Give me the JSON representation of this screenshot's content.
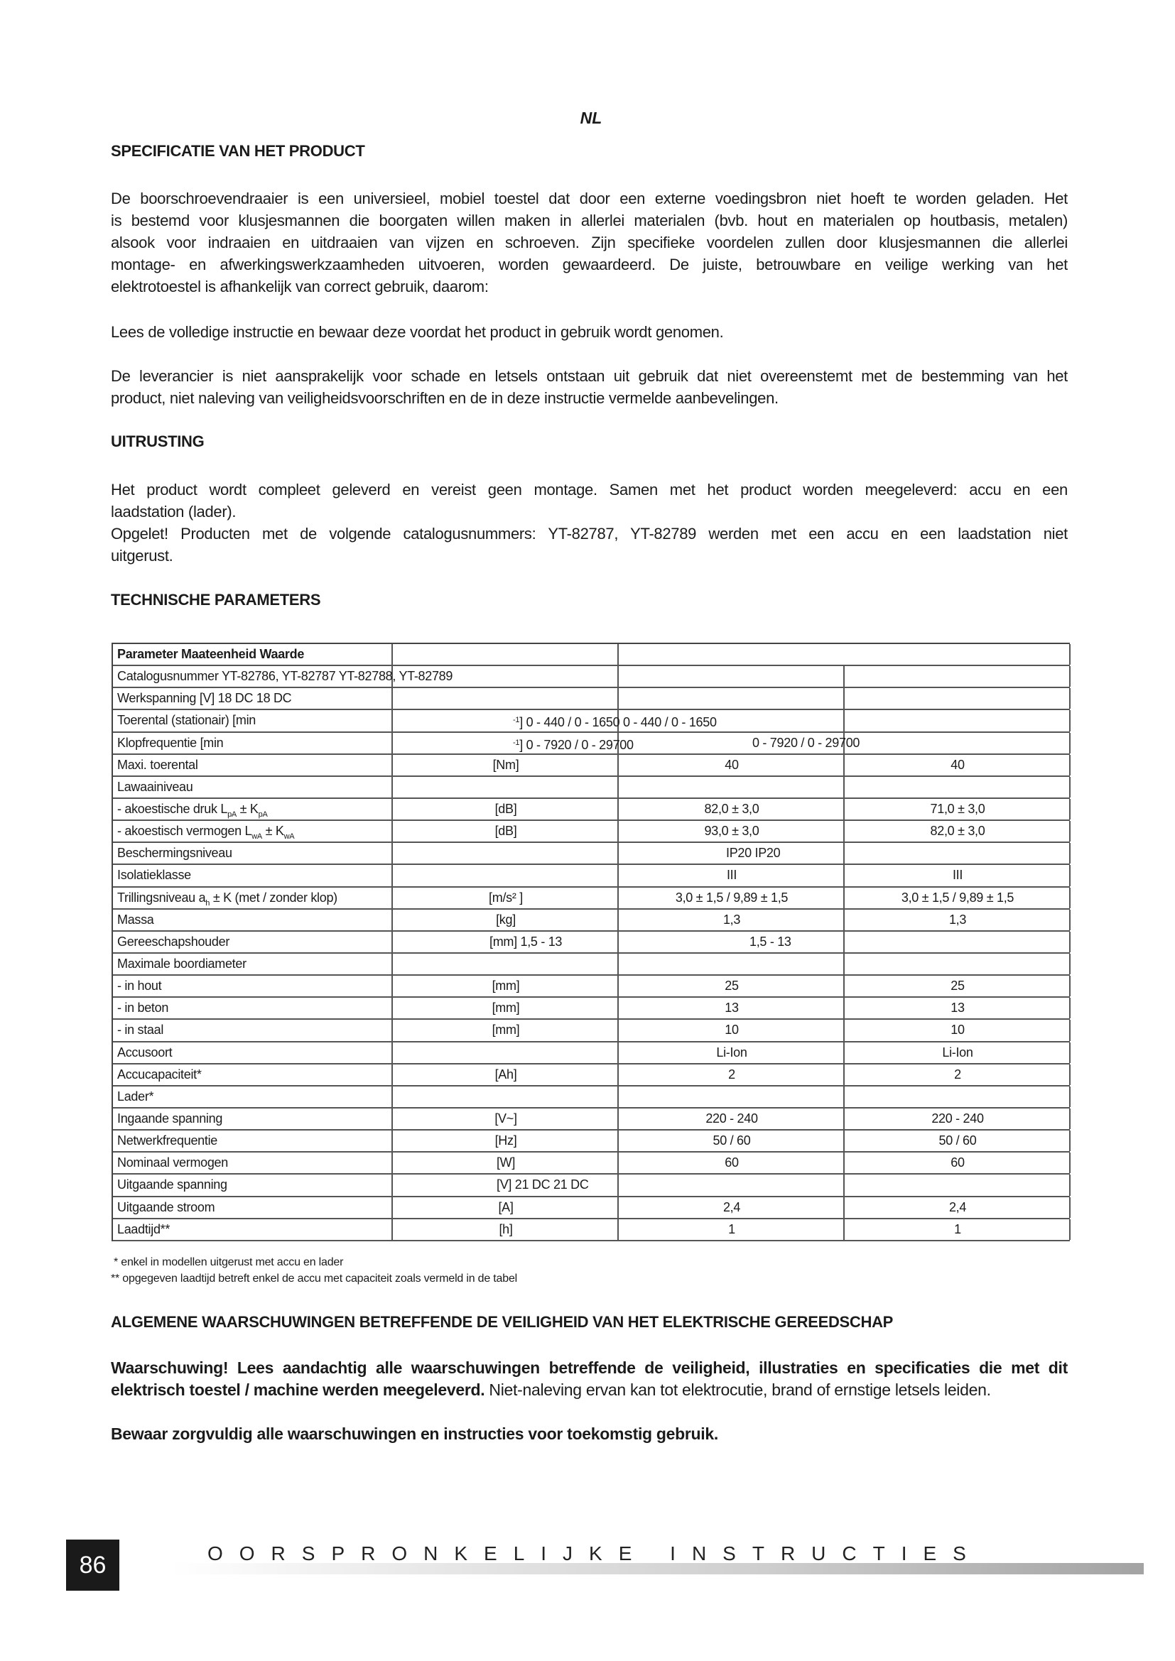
{
  "lang": "NL",
  "sections": {
    "spec_title": "SPECIFICATIE VAN HET PRODUCT",
    "spec_lines": [
      "De boorschroevendraaier is een universieel, mobiel toestel dat door een externe voedingsbron niet hoeft te worden geladen. Het",
      "is bestemd voor klusjesmannen die boorgaten willen maken in allerlei materialen (bvb. hout en materialen op houtbasis, metalen)",
      "alsook voor indraaien en uitdraaien van vijzen en schroeven. Zijn specifieke voordelen zullen door klusjesmannen die allerlei",
      "montage- en afwerkingswerkzaamheden uitvoeren, worden gewaardeerd. De juiste, betrouwbare en veilige werking van het",
      "elektrotoestel is afhankelijk van correct gebruik, daarom:"
    ],
    "read_line": "Lees de volledige instructie en bewaar deze voordat het product in gebruik wordt genomen.",
    "liability_lines": [
      "De leverancier is niet aansprakelijk voor schade en letsels ontstaan uit gebruik dat niet overeenstemt met de bestemming van het",
      "product, niet naleving van veiligheidsvoorschriften en de in deze instructie vermelde aanbevelingen."
    ],
    "equip_title": "UITRUSTING",
    "equip_lines": [
      "Het product wordt compleet geleverd en vereist geen montage. Samen met het product worden meegeleverd: accu en een",
      "laadstation (lader).",
      "Opgelet! Producten met de volgende catalogusnummers: YT-82787, YT-82789 werden met een accu en een laadstation niet",
      "uitgerust."
    ],
    "tech_title": "TECHNISCHE PARAMETERS",
    "footnotes": [
      "* enkel in modellen uitgerust met accu en lader",
      "** opgegeven laadtijd betreft enkel de accu met capaciteit zoals vermeld in de tabel"
    ],
    "safety_title": "ALGEMENE WAARSCHUWINGEN BETREFFENDE DE VEILIGHEID VAN HET ELEKTRISCHE GEREEDSCHAP",
    "warning_line1": "Waarschuwing! Lees aandachtig alle waarschuwingen betreffende de veiligheid, illustraties en specificaties die met dit",
    "warning_line2_bold": "elektrisch toestel / machine werden meegeleverd.",
    "warning_line2_rest": " Niet-naleving ervan kan tot elektrocutie, brand of ernstige letsels leiden.",
    "keep_line": "Bewaar zorgvuldig alle waarschuwingen en instructies voor toekomstig gebruik."
  },
  "table": {
    "rows": [
      {
        "label": [
          {
            "t": "Parameter Maateenheid Waarde"
          }
        ],
        "bold": true,
        "merged": true
      },
      {
        "label": [
          {
            "t": "Catalogusnummer YT-82786, YT-82787 YT-82788, YT-82789"
          }
        ]
      },
      {
        "label": [
          {
            "t": "Werkspanning [V] 18 DC 18 DC"
          }
        ]
      },
      {
        "label": [
          {
            "t": "Toerental (stationair) [min"
          }
        ],
        "spill": [
          [
            {
              "t": "-1",
              "sup": true
            },
            {
              "t": "] 0 - 440 / 0 - 1650 0 - 440 / 0 - 1650"
            }
          ]
        ]
      },
      {
        "label": [
          {
            "t": "Klopfrequentie [min"
          }
        ],
        "spill": [
          [
            {
              "t": "-1",
              "sup": true
            },
            {
              "t": "] 0 - 7920 / 0 - 29700"
            }
          ],
          [
            {
              "t": "0 - 7920 / 0 - 29700"
            }
          ]
        ]
      },
      {
        "label": [
          {
            "t": "Maxi. toerental"
          }
        ],
        "unit": "[Nm]",
        "v1": "40",
        "v2": "40"
      },
      {
        "label": [
          {
            "t": "Lawaainiveau"
          }
        ]
      },
      {
        "label": [
          {
            "t": "- akoestische druk L"
          },
          {
            "t": "pA",
            "sub": true
          },
          {
            "t": " ± K"
          },
          {
            "t": "pA",
            "sub": true
          }
        ],
        "unit": "[dB]",
        "v1": "82,0 ± 3,0",
        "v2": "71,0 ± 3,0"
      },
      {
        "label": [
          {
            "t": "- akoestisch vermogen L"
          },
          {
            "t": "wA",
            "sub": true
          },
          {
            "t": " ± K"
          },
          {
            "t": "wA",
            "sub": true
          }
        ],
        "unit": "[dB]",
        "v1": "93,0 ± 3,0",
        "v2": "82,0 ± 3,0"
      },
      {
        "label": [
          {
            "t": "Beschermingsniveau"
          }
        ],
        "spill": [
          [
            {
              "t": "IP20 IP20"
            }
          ]
        ]
      },
      {
        "label": [
          {
            "t": "Isolatieklasse"
          }
        ],
        "v1": "III",
        "v2": "III"
      },
      {
        "label": [
          {
            "t": "Trillingsniveau a"
          },
          {
            "t": "h",
            "sub": true
          },
          {
            "t": " ± K (met / zonder klop)"
          }
        ],
        "unit": "[m/s² ]",
        "v1": "3,0 ± 1,5 / 9,89 ± 1,5",
        "v2": "3,0 ± 1,5 / 9,89 ± 1,5"
      },
      {
        "label": [
          {
            "t": "Massa"
          }
        ],
        "unit": "[kg]",
        "v1": "1,3",
        "v2": "1,3"
      },
      {
        "label": [
          {
            "t": "Gereeschapshouder"
          }
        ],
        "spill": [
          [
            {
              "t": "[mm] 1,5 - 13"
            }
          ],
          [
            {
              "t": "1,5 - 13"
            }
          ]
        ]
      },
      {
        "label": [
          {
            "t": "Maximale boordiameter"
          }
        ]
      },
      {
        "label": [
          {
            "t": "- in hout"
          }
        ],
        "unit": "[mm]",
        "v1": "25",
        "v2": "25"
      },
      {
        "label": [
          {
            "t": "- in beton"
          }
        ],
        "unit": "[mm]",
        "v1": "13",
        "v2": "13"
      },
      {
        "label": [
          {
            "t": "- in staal"
          }
        ],
        "unit": "[mm]",
        "v1": "10",
        "v2": "10"
      },
      {
        "label": [
          {
            "t": "Accusoort"
          }
        ],
        "v1": "Li-Ion",
        "v2": "Li-Ion"
      },
      {
        "label": [
          {
            "t": "Accucapaciteit*"
          }
        ],
        "unit": "[Ah]",
        "v1": "2",
        "v2": "2"
      },
      {
        "label": [
          {
            "t": "Lader*"
          }
        ]
      },
      {
        "label": [
          {
            "t": "Ingaande spanning"
          }
        ],
        "unit": "[V~]",
        "v1": "220 - 240",
        "v2": "220 - 240"
      },
      {
        "label": [
          {
            "t": "Netwerkfrequentie"
          }
        ],
        "unit": "[Hz]",
        "v1": "50 / 60",
        "v2": "50 / 60"
      },
      {
        "label": [
          {
            "t": "Nominaal vermogen"
          }
        ],
        "unit": "[W]",
        "v1": "60",
        "v2": "60"
      },
      {
        "label": [
          {
            "t": "Uitgaande spanning"
          }
        ],
        "spill": [
          [
            {
              "t": "[V] 21 DC 21 DC"
            }
          ]
        ]
      },
      {
        "label": [
          {
            "t": "Uitgaande stroom"
          }
        ],
        "unit": "[A]",
        "v1": "2,4",
        "v2": "2,4"
      },
      {
        "label": [
          {
            "t": "Laadtijd**"
          }
        ],
        "unit": "[h]",
        "v1": "1",
        "v2": "1"
      }
    ]
  },
  "footer": {
    "page_number": "86",
    "title": "OORSPRONKELIJKE INSTRUCTIES"
  }
}
